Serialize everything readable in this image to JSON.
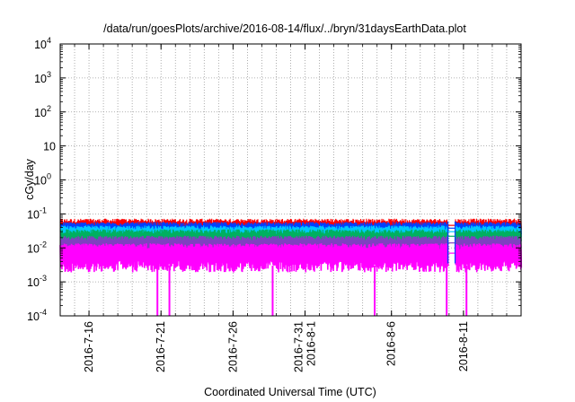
{
  "chart_data": {
    "type": "line",
    "title": "/data/run/goesPlots/archive/2016-08-14/flux/../bryn/31daysEarthData.plot",
    "xlabel": "Coordinated Universal Time (UTC)",
    "ylabel": "cGy/day",
    "yscale": "log",
    "ylim": [
      0.0001,
      10000
    ],
    "xlim": [
      "2016-07-14",
      "2016-08-15"
    ],
    "grid": true,
    "y_ticks": [
      {
        "value": 0.0001,
        "base": "10",
        "exp": "-4"
      },
      {
        "value": 0.001,
        "base": "10",
        "exp": "-3"
      },
      {
        "value": 0.01,
        "base": "10",
        "exp": "-2"
      },
      {
        "value": 0.1,
        "base": "10",
        "exp": "-1"
      },
      {
        "value": 1,
        "base": "10",
        "exp": "0"
      },
      {
        "value": 10,
        "base": "10",
        "exp": ""
      },
      {
        "value": 100,
        "base": "10",
        "exp": "2"
      },
      {
        "value": 1000,
        "base": "10",
        "exp": "3"
      },
      {
        "value": 10000,
        "base": "10",
        "exp": "4"
      }
    ],
    "x_ticks": [
      {
        "date": "2016-07-16",
        "label": [
          "2016-7-16"
        ]
      },
      {
        "date": "2016-07-21",
        "label": [
          "2016-7-21"
        ]
      },
      {
        "date": "2016-07-26",
        "label": [
          "2016-7-26"
        ]
      },
      {
        "date": "2016-07-31",
        "label": [
          "2016-7-31",
          "2016-8-1"
        ]
      },
      {
        "date": "2016-08-06",
        "label": [
          "2016-8-6"
        ]
      },
      {
        "date": "2016-08-11",
        "label": [
          "2016-8-11"
        ]
      }
    ],
    "data_gap": [
      "2016-08-09T22:00",
      "2016-08-10T10:00"
    ],
    "dropouts": [
      "2016-07-20T18:00",
      "2016-07-21T14:00",
      "2016-07-28T18:00",
      "2016-08-04T20:00",
      "2016-08-09T20:00",
      "2016-08-11T05:00"
    ],
    "series": [
      {
        "color": "#ff0000",
        "typical": 0.046,
        "spread": 0.012
      },
      {
        "color": "#0040ff",
        "typical": 0.038,
        "spread": 0.009
      },
      {
        "color": "#00c8ff",
        "typical": 0.03,
        "spread": 0.007
      },
      {
        "color": "#00b060",
        "typical": 0.022,
        "spread": 0.006
      },
      {
        "color": "#8040c0",
        "typical": 0.014,
        "spread": 0.004
      },
      {
        "color": "#ff00ff",
        "typical": 0.007,
        "spread": 0.003
      }
    ]
  }
}
